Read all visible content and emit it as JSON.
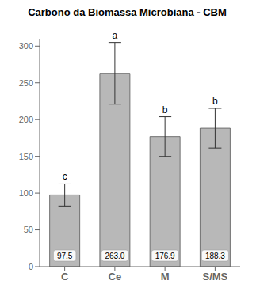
{
  "chart_data": {
    "type": "bar",
    "title": "Carbono da Biomassa Microbiana - CBM",
    "categories": [
      "C",
      "Ce",
      "M",
      "S/MS"
    ],
    "values": [
      97.5,
      263.0,
      176.9,
      188.3
    ],
    "value_labels": [
      "97.5",
      "263.0",
      "176.9",
      "188.3"
    ],
    "errors": [
      15,
      42,
      27,
      27
    ],
    "annotations": [
      "c",
      "a",
      "b",
      "b"
    ],
    "color": "#b8b8b8",
    "ylim": [
      0,
      310
    ],
    "yticks": [
      0,
      50,
      100,
      150,
      200,
      250,
      300
    ],
    "grid": false,
    "data_labels": true
  }
}
